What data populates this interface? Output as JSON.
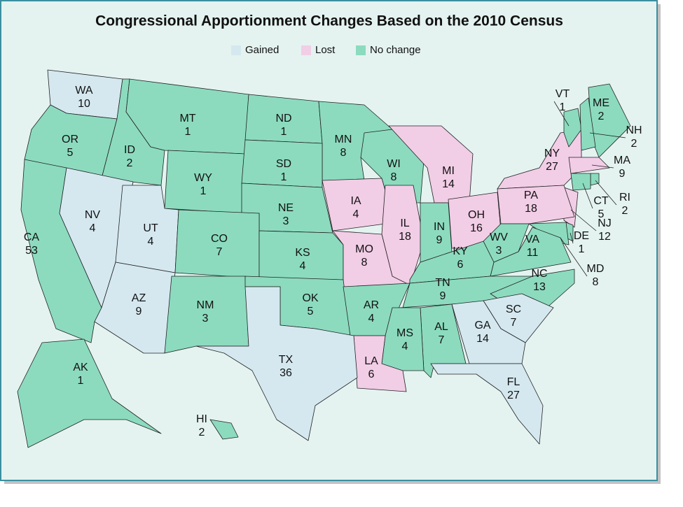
{
  "title": "Congressional Apportionment Changes Based on the 2010 Census",
  "legend": [
    {
      "label": "Gained",
      "color": "#d5e8f0"
    },
    {
      "label": "Lost",
      "color": "#f2cde6"
    },
    {
      "label": "No change",
      "color": "#8cdbbf"
    }
  ],
  "states": [
    {
      "abbr": "WA",
      "seats": 10,
      "status": 0
    },
    {
      "abbr": "OR",
      "seats": 5,
      "status": 2
    },
    {
      "abbr": "ID",
      "seats": 2,
      "status": 2
    },
    {
      "abbr": "MT",
      "seats": 1,
      "status": 2
    },
    {
      "abbr": "ND",
      "seats": 1,
      "status": 2
    },
    {
      "abbr": "MN",
      "seats": 8,
      "status": 2
    },
    {
      "abbr": "WI",
      "seats": 8,
      "status": 2
    },
    {
      "abbr": "MI",
      "seats": 14,
      "status": 1
    },
    {
      "abbr": "NY",
      "seats": 27,
      "status": 1
    },
    {
      "abbr": "VT",
      "seats": 1,
      "status": 2
    },
    {
      "abbr": "ME",
      "seats": 2,
      "status": 2
    },
    {
      "abbr": "NH",
      "seats": 2,
      "status": 2
    },
    {
      "abbr": "MA",
      "seats": 9,
      "status": 1
    },
    {
      "abbr": "RI",
      "seats": 2,
      "status": 2
    },
    {
      "abbr": "CT",
      "seats": 5,
      "status": 2
    },
    {
      "abbr": "NJ",
      "seats": 12,
      "status": 1
    },
    {
      "abbr": "DE",
      "seats": 1,
      "status": 2
    },
    {
      "abbr": "MD",
      "seats": 8,
      "status": 2
    },
    {
      "abbr": "CA",
      "seats": 53,
      "status": 2
    },
    {
      "abbr": "NV",
      "seats": 4,
      "status": 0
    },
    {
      "abbr": "UT",
      "seats": 4,
      "status": 0
    },
    {
      "abbr": "WY",
      "seats": 1,
      "status": 2
    },
    {
      "abbr": "SD",
      "seats": 1,
      "status": 2
    },
    {
      "abbr": "NE",
      "seats": 3,
      "status": 2
    },
    {
      "abbr": "IA",
      "seats": 4,
      "status": 1
    },
    {
      "abbr": "IL",
      "seats": 18,
      "status": 1
    },
    {
      "abbr": "IN",
      "seats": 9,
      "status": 2
    },
    {
      "abbr": "OH",
      "seats": 16,
      "status": 1
    },
    {
      "abbr": "PA",
      "seats": 18,
      "status": 1
    },
    {
      "abbr": "WV",
      "seats": 3,
      "status": 2
    },
    {
      "abbr": "VA",
      "seats": 11,
      "status": 2
    },
    {
      "abbr": "KY",
      "seats": 6,
      "status": 2
    },
    {
      "abbr": "CO",
      "seats": 7,
      "status": 2
    },
    {
      "abbr": "KS",
      "seats": 4,
      "status": 2
    },
    {
      "abbr": "MO",
      "seats": 8,
      "status": 1
    },
    {
      "abbr": "AZ",
      "seats": 9,
      "status": 0
    },
    {
      "abbr": "NM",
      "seats": 3,
      "status": 2
    },
    {
      "abbr": "OK",
      "seats": 5,
      "status": 2
    },
    {
      "abbr": "AR",
      "seats": 4,
      "status": 2
    },
    {
      "abbr": "TN",
      "seats": 9,
      "status": 2
    },
    {
      "abbr": "NC",
      "seats": 13,
      "status": 2
    },
    {
      "abbr": "SC",
      "seats": 7,
      "status": 0
    },
    {
      "abbr": "GA",
      "seats": 14,
      "status": 0
    },
    {
      "abbr": "AL",
      "seats": 7,
      "status": 2
    },
    {
      "abbr": "MS",
      "seats": 4,
      "status": 2
    },
    {
      "abbr": "LA",
      "seats": 6,
      "status": 1
    },
    {
      "abbr": "TX",
      "seats": 36,
      "status": 0
    },
    {
      "abbr": "FL",
      "seats": 27,
      "status": 0
    },
    {
      "abbr": "AK",
      "seats": 1,
      "status": 2
    },
    {
      "abbr": "HI",
      "seats": 2,
      "status": 2
    }
  ]
}
